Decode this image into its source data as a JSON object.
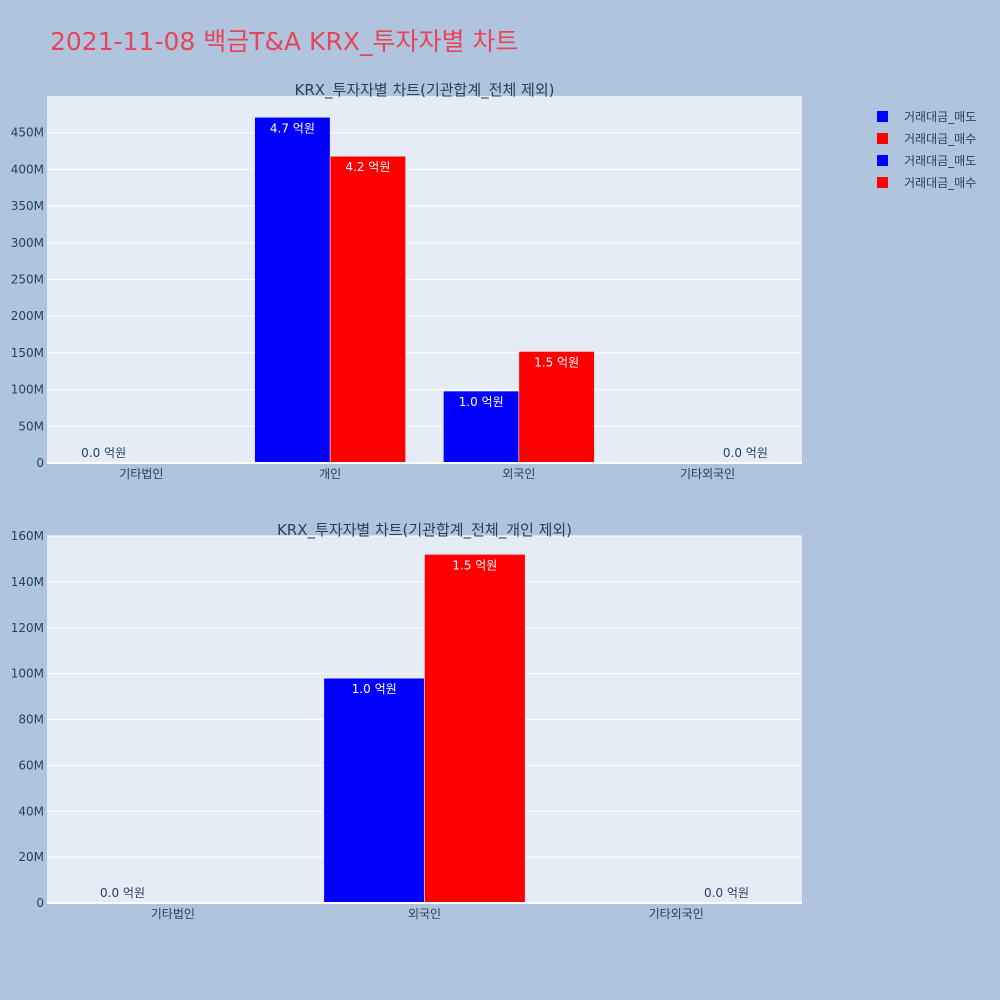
{
  "page": {
    "title": "2021-11-08 백금T&A KRX_투자자별 차트"
  },
  "legend": [
    {
      "label": "거래대금_매도",
      "color": "#0000ff"
    },
    {
      "label": "거래대금_매수",
      "color": "#ff0000"
    },
    {
      "label": "거래대금_매도",
      "color": "#0000ff"
    },
    {
      "label": "거래대금_매수",
      "color": "#ff0000"
    }
  ],
  "colors": {
    "plot_bg": "#e5ecf6",
    "grid": "#ffffff",
    "axis_text": "#2a3f5f",
    "sell": "#0000ff",
    "buy": "#ff0000"
  },
  "chart_data": [
    {
      "type": "bar",
      "title": "KRX_투자자별 차트(기관합계_전체 제외)",
      "categories": [
        "기타법인",
        "개인",
        "외국인",
        "기타외국인"
      ],
      "series": [
        {
          "name": "거래대금_매도",
          "color": "#0000ff",
          "values": [
            0,
            471000000,
            98000000,
            0
          ],
          "labels": [
            "0.0 억원",
            "4.7 억원",
            "1.0 억원",
            ""
          ]
        },
        {
          "name": "거래대금_매수",
          "color": "#ff0000",
          "values": [
            0,
            418000000,
            152000000,
            0
          ],
          "labels": [
            "",
            "4.2 억원",
            "1.5 억원",
            "0.0 억원"
          ]
        }
      ],
      "ylim": [
        0,
        500000000
      ],
      "yticks": [
        0,
        50000000,
        100000000,
        150000000,
        200000000,
        250000000,
        300000000,
        350000000,
        400000000,
        450000000
      ],
      "ytick_labels": [
        "0",
        "50M",
        "100M",
        "150M",
        "200M",
        "250M",
        "300M",
        "350M",
        "400M",
        "450M"
      ],
      "xlabel": "",
      "ylabel": "",
      "grid": true
    },
    {
      "type": "bar",
      "title": "KRX_투자자별 차트(기관합계_전체_개인 제외)",
      "categories": [
        "기타법인",
        "외국인",
        "기타외국인"
      ],
      "series": [
        {
          "name": "거래대금_매도",
          "color": "#0000ff",
          "values": [
            0,
            98000000,
            0
          ],
          "labels": [
            "0.0 억원",
            "1.0 억원",
            ""
          ]
        },
        {
          "name": "거래대금_매수",
          "color": "#ff0000",
          "values": [
            0,
            152000000,
            0
          ],
          "labels": [
            "",
            "1.5 억원",
            "0.0 억원"
          ]
        }
      ],
      "ylim": [
        0,
        160000000
      ],
      "yticks": [
        0,
        20000000,
        40000000,
        60000000,
        80000000,
        100000000,
        120000000,
        140000000,
        160000000
      ],
      "ytick_labels": [
        "0",
        "20M",
        "40M",
        "60M",
        "80M",
        "100M",
        "120M",
        "140M",
        "160M"
      ],
      "xlabel": "",
      "ylabel": "",
      "grid": true
    }
  ]
}
